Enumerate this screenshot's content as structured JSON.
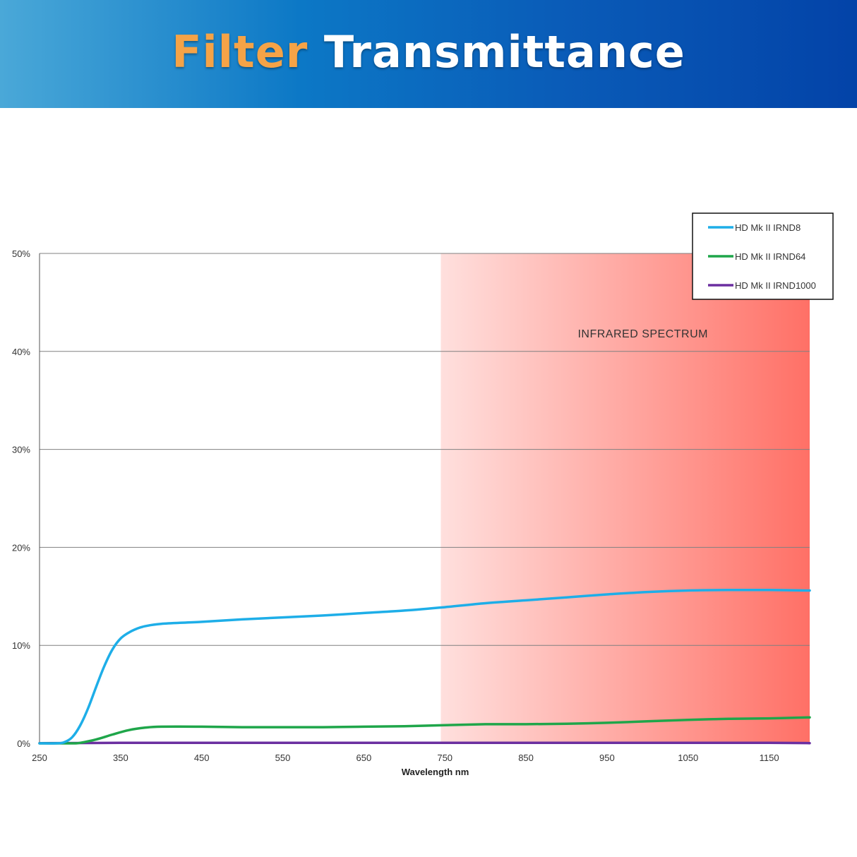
{
  "header": {
    "title_part1": "Filter",
    "title_part2": "Transmittance"
  },
  "chart_data": {
    "type": "line",
    "xlabel": "Wavelength nm",
    "ylabel": "",
    "xlim": [
      250,
      1200
    ],
    "ylim": [
      0,
      50
    ],
    "x_ticks": [
      250,
      350,
      450,
      550,
      650,
      750,
      850,
      950,
      1050,
      1150
    ],
    "y_ticks": [
      0,
      10,
      20,
      30,
      40,
      50
    ],
    "y_tick_labels": [
      "0%",
      "10%",
      "20%",
      "30%",
      "40%",
      "50%"
    ],
    "grid": "horizontal",
    "legend_position": "top-right",
    "shaded_region": {
      "x_start": 745,
      "x_end": 1200,
      "label": "INFRARED SPECTRUM",
      "color": "#ff7066"
    },
    "series": [
      {
        "name": "HD Mk II IRND8",
        "color": "#1eaee8",
        "x": [
          250,
          270,
          280,
          290,
          300,
          310,
          320,
          330,
          340,
          350,
          360,
          370,
          380,
          400,
          450,
          500,
          550,
          600,
          650,
          700,
          750,
          800,
          850,
          900,
          950,
          1000,
          1050,
          1100,
          1150,
          1200
        ],
        "y": [
          0,
          0,
          0.1,
          0.6,
          1.8,
          3.6,
          5.8,
          7.9,
          9.6,
          10.7,
          11.3,
          11.7,
          11.95,
          12.2,
          12.4,
          12.65,
          12.85,
          13.05,
          13.3,
          13.55,
          13.9,
          14.3,
          14.6,
          14.9,
          15.2,
          15.45,
          15.6,
          15.65,
          15.65,
          15.6
        ]
      },
      {
        "name": "HD Mk II IRND64",
        "color": "#1fa64a",
        "x": [
          250,
          290,
          300,
          320,
          340,
          360,
          380,
          400,
          450,
          500,
          550,
          600,
          650,
          700,
          750,
          800,
          850,
          900,
          950,
          1000,
          1050,
          1100,
          1150,
          1200
        ],
        "y": [
          0,
          0,
          0.05,
          0.4,
          0.9,
          1.35,
          1.6,
          1.7,
          1.7,
          1.65,
          1.65,
          1.65,
          1.7,
          1.75,
          1.85,
          1.95,
          1.95,
          2.0,
          2.1,
          2.25,
          2.4,
          2.5,
          2.55,
          2.65
        ]
      },
      {
        "name": "HD Mk II IRND1000",
        "color": "#6b2fa0",
        "x": [
          250,
          350,
          450,
          550,
          650,
          750,
          850,
          950,
          1050,
          1150,
          1200
        ],
        "y": [
          0.02,
          0.05,
          0.05,
          0.05,
          0.05,
          0.05,
          0.05,
          0.05,
          0.05,
          0.05,
          0.02
        ]
      }
    ]
  }
}
